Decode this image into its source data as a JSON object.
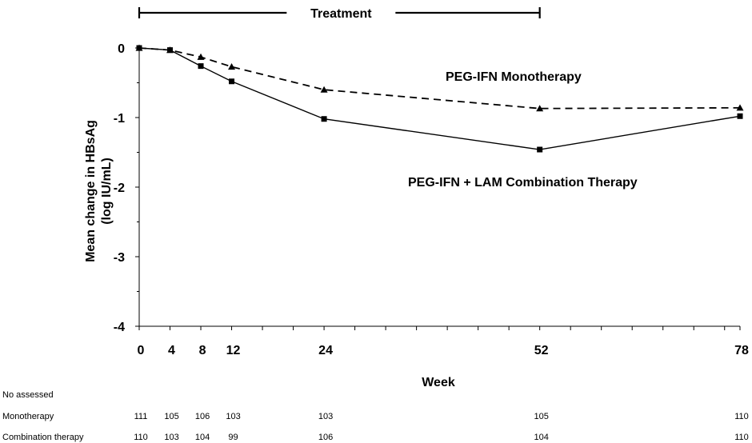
{
  "chart_data": {
    "type": "line",
    "ylabel_line1": "Mean change in HBsAg",
    "ylabel_line2": "(log IU/mL)",
    "xlabel": "Week",
    "x": [
      0,
      4,
      8,
      12,
      24,
      52,
      78
    ],
    "x_tick_labels": [
      "0",
      "4",
      "8",
      "12",
      "24",
      "52",
      "78"
    ],
    "y_ticks": [
      0,
      -1,
      -2,
      -3,
      -4
    ],
    "y_tick_labels": [
      "0",
      "-1",
      "-2",
      "-3",
      "-4"
    ],
    "xlim": [
      0,
      78
    ],
    "ylim": [
      -4,
      0
    ],
    "treatment": {
      "label": "Treatment",
      "start": 0,
      "end": 52
    },
    "series": [
      {
        "name": "PEG-IFN Monotherapy",
        "marker": "triangle",
        "dash": "dashed",
        "color": "#000000",
        "values": [
          0,
          -0.03,
          -0.13,
          -0.27,
          -0.6,
          -0.87,
          -0.86
        ]
      },
      {
        "name": "PEG-IFN + LAM Combination Therapy",
        "marker": "square",
        "dash": "solid",
        "color": "#000000",
        "values": [
          0,
          -0.03,
          -0.26,
          -0.48,
          -1.02,
          -1.46,
          -0.98
        ]
      }
    ],
    "n_assessed": {
      "header": "No assessed",
      "rows": [
        {
          "label": "Monotherapy",
          "values": [
            "111",
            "105",
            "106",
            "103",
            "103",
            "105",
            "110"
          ]
        },
        {
          "label": "Combination therapy",
          "values": [
            "110",
            "103",
            "104",
            "99",
            "106",
            "104",
            "110"
          ]
        }
      ]
    }
  }
}
